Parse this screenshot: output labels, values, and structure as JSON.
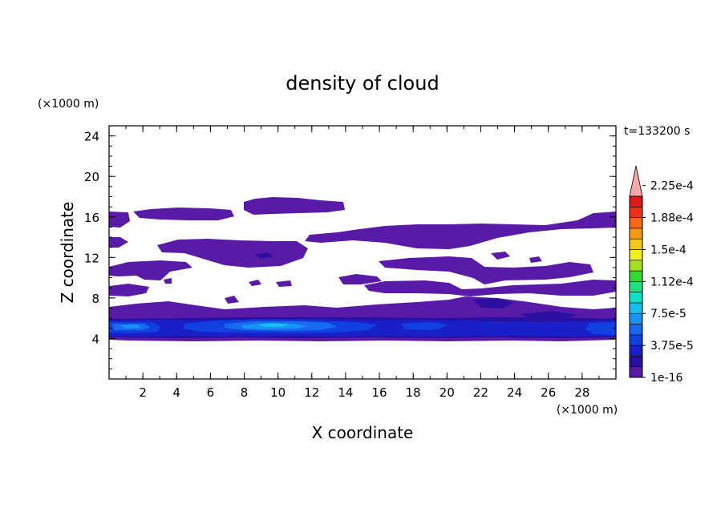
{
  "chart_data": {
    "type": "contour",
    "title": "density of cloud",
    "xlabel": "X coordinate",
    "ylabel": "Z coordinate",
    "x_unit": "(×1000 m)",
    "y_unit": "(×1000 m)",
    "time_label": "t=133200 s",
    "xlim": [
      0,
      30
    ],
    "ylim": [
      0,
      25
    ],
    "x_ticks": [
      2,
      4,
      6,
      8,
      10,
      12,
      14,
      16,
      18,
      20,
      22,
      24,
      26,
      28
    ],
    "x_tick_labels": [
      "2",
      "4",
      "6",
      "8",
      "10",
      "12",
      "14",
      "16",
      "18",
      "20",
      "22",
      "24",
      "26",
      "28"
    ],
    "y_ticks": [
      4,
      8,
      12,
      16,
      20,
      24
    ],
    "y_tick_labels": [
      "4",
      "8",
      "12",
      "16",
      "20",
      "24"
    ],
    "colorbar": {
      "levels": [
        "1e-16",
        "3.75e-5",
        "7.5e-5",
        "1.12e-4",
        "1.5e-4",
        "1.88e-4",
        "2.25e-4"
      ],
      "colors": [
        "#5a1aa8",
        "#2a10a0",
        "#1a20c8",
        "#1040e0",
        "#1868f0",
        "#1894f8",
        "#14c0f0",
        "#10e0c8",
        "#20e080",
        "#30d830",
        "#a0e020",
        "#f0f020",
        "#f8c818",
        "#f89818",
        "#f86818",
        "#f03018",
        "#e01818",
        "#f8a8a8"
      ],
      "extend_max_color": "#f8a8a8"
    },
    "cloud_layers": [
      {
        "name": "layer-16",
        "z_range": [
          15.0,
          17.8
        ],
        "max_density": "1e-16"
      },
      {
        "name": "layer-13",
        "z_range": [
          11.4,
          14.2
        ],
        "max_density": "1e-16"
      },
      {
        "name": "layer-9",
        "z_range": [
          8.0,
          11.6
        ],
        "max_density": "1e-16"
      },
      {
        "name": "layer-6",
        "z_range": [
          5.8,
          7.6
        ],
        "max_density": "3.75e-5"
      },
      {
        "name": "layer-5",
        "z_range": [
          3.8,
          6.2
        ],
        "max_density": "1.12e-4"
      }
    ]
  }
}
